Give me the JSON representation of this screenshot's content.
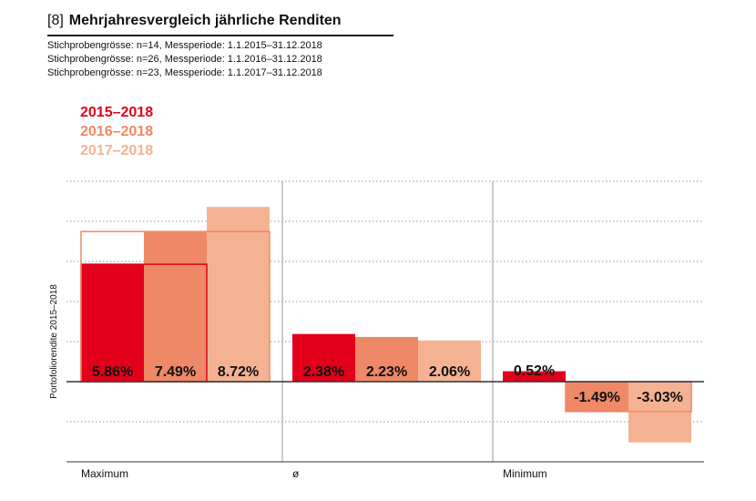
{
  "header": {
    "number": "[8]",
    "title": "Mehrjahresvergleich jährliche Renditen",
    "subtitles": [
      "Stichprobengrösse: n=14, Messperiode: 1.1.2015–31.12.2018",
      "Stichprobengrösse: n=26, Messperiode: 1.1.2016–31.12.2018",
      "Stichprobengrösse: n=23, Messperiode: 1.1.2017–31.12.2018"
    ]
  },
  "colors": {
    "s2015": "#e2001a",
    "s2016": "#ee8866",
    "s2017": "#f5b293",
    "grid": "#999999",
    "axis": "#333333"
  },
  "chart_data": {
    "type": "bar",
    "title": "Mehrjahresvergleich jährliche Renditen",
    "ylabel": "Portofoliorendite 2015–2018",
    "xlabel": "",
    "categories": [
      "Maximum",
      "ø",
      "Minimum"
    ],
    "series": [
      {
        "name": "2015–2018",
        "values": [
          5.86,
          2.38,
          0.52
        ],
        "labels": [
          "5.86%",
          "2.38%",
          "0.52%"
        ]
      },
      {
        "name": "2016–2018",
        "values": [
          7.49,
          2.23,
          -1.49
        ],
        "labels": [
          "7.49%",
          "2.23%",
          "-1.49%"
        ]
      },
      {
        "name": "2017–2018",
        "values": [
          8.72,
          2.06,
          -3.03
        ],
        "labels": [
          "8.72%",
          "2.06%",
          "-3.03%"
        ]
      }
    ],
    "ylim": [
      -4,
      10
    ],
    "grid": true,
    "legend_position": "top-left"
  }
}
